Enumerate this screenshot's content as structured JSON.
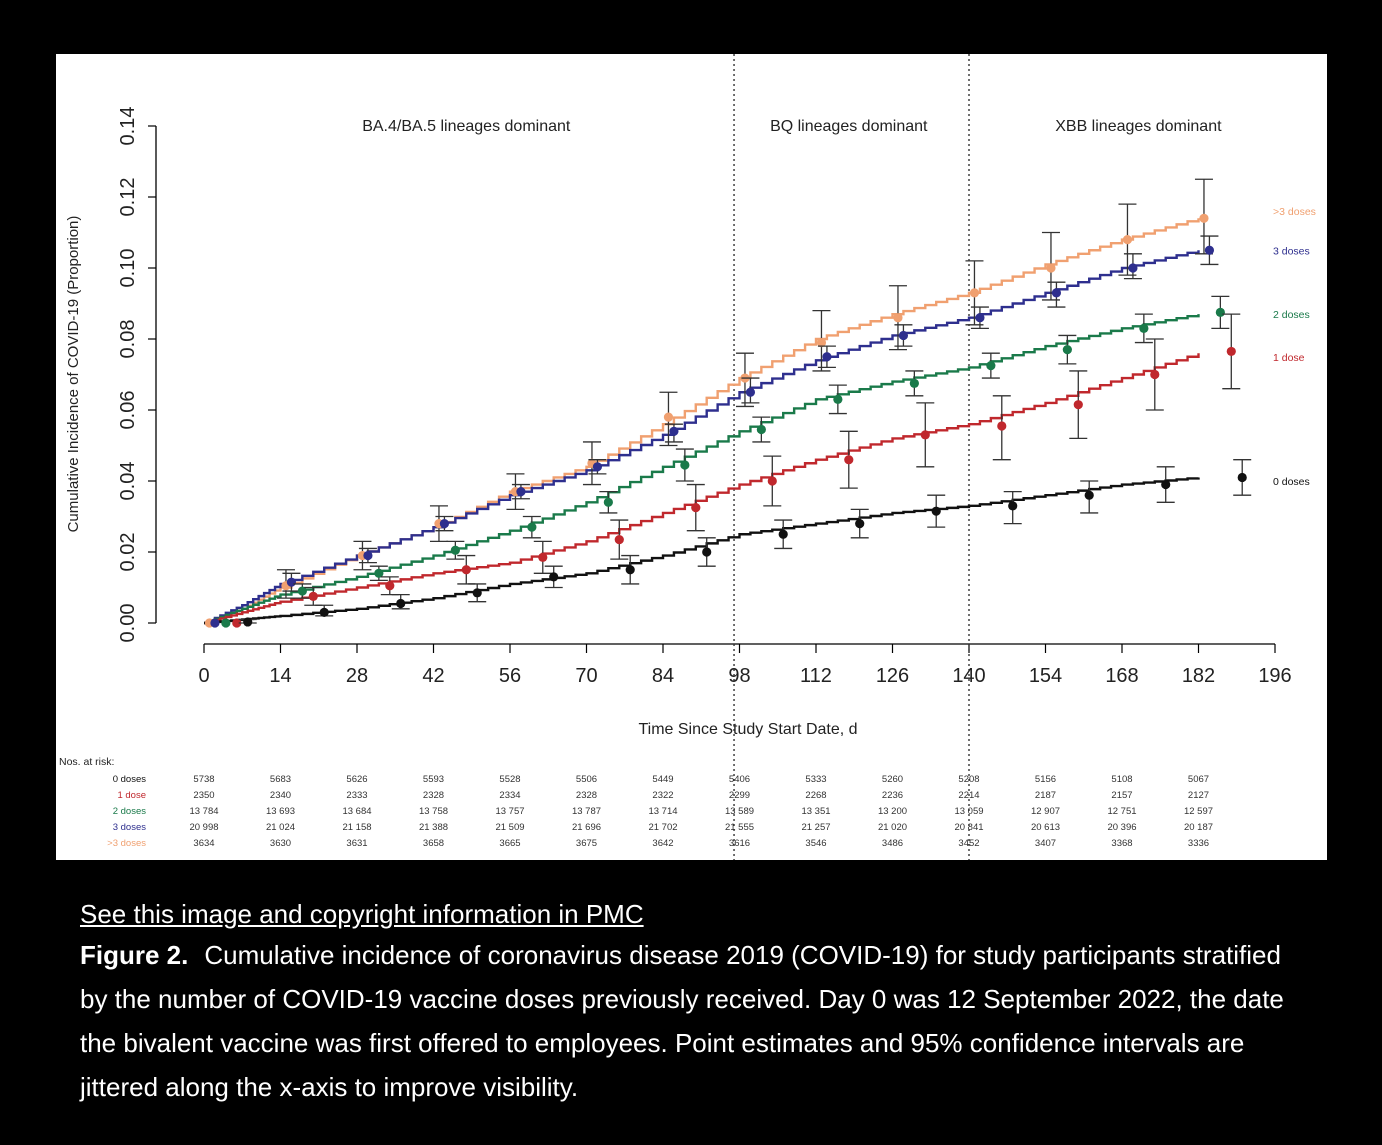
{
  "caption": {
    "link_text": "See this image and copyright information in PMC",
    "figure_label": "Figure 2.",
    "figure_text": "Cumulative incidence of coronavirus disease 2019 (COVID-19) for study participants stratified by the number of COVID-19 vaccine doses previously received. Day 0 was 12 September 2022, the date the bivalent vaccine was first offered to employees. Point estimates and 95% confidence intervals are jittered along the x-axis to improve visibility."
  },
  "chart_data": {
    "type": "line",
    "xlabel": "Time Since Study Start Date, d",
    "ylabel": "Cumulative Incidence of COVID-19 (Proportion)",
    "xlim": [
      0,
      196
    ],
    "ylim": [
      0,
      0.14
    ],
    "x_ticks": [
      0,
      14,
      28,
      42,
      56,
      70,
      84,
      98,
      112,
      126,
      140,
      154,
      168,
      182,
      196
    ],
    "y_ticks": [
      0.0,
      0.02,
      0.04,
      0.06,
      0.08,
      0.1,
      0.12,
      0.14
    ],
    "x_tick_labels": [
      "0",
      "14",
      "28",
      "42",
      "56",
      "70",
      "84",
      "98",
      "112",
      "126",
      "140",
      "154",
      "168",
      "182",
      "196"
    ],
    "y_tick_labels": [
      "0.00",
      "0.02",
      "0.04",
      "0.06",
      "0.08",
      "0.10",
      "0.12",
      "0.14"
    ],
    "period_lines": [
      97,
      140
    ],
    "periods": [
      {
        "label": "BA.4/BA.5 lineages dominant",
        "center_day": 48
      },
      {
        "label": "BQ lineages dominant",
        "center_day": 118
      },
      {
        "label": "XBB lineages dominant",
        "center_day": 171
      }
    ],
    "series": [
      {
        "name": ">3 doses",
        "color": "#f0a070",
        "curve": [
          [
            0,
            0
          ],
          [
            7,
            0.004
          ],
          [
            14,
            0.01
          ],
          [
            28,
            0.019
          ],
          [
            42,
            0.027
          ],
          [
            56,
            0.037
          ],
          [
            70,
            0.044
          ],
          [
            84,
            0.056
          ],
          [
            98,
            0.069
          ],
          [
            112,
            0.08
          ],
          [
            126,
            0.087
          ],
          [
            140,
            0.093
          ],
          [
            154,
            0.101
          ],
          [
            168,
            0.108
          ],
          [
            182,
            0.114
          ]
        ],
        "points": [
          {
            "x": 1,
            "y": 0,
            "lo": 0,
            "hi": 0
          },
          {
            "x": 15,
            "y": 0.0105,
            "lo": 0.007,
            "hi": 0.015
          },
          {
            "x": 29,
            "y": 0.019,
            "lo": 0.015,
            "hi": 0.023
          },
          {
            "x": 43,
            "y": 0.028,
            "lo": 0.023,
            "hi": 0.033
          },
          {
            "x": 57,
            "y": 0.037,
            "lo": 0.032,
            "hi": 0.042
          },
          {
            "x": 71,
            "y": 0.045,
            "lo": 0.039,
            "hi": 0.051
          },
          {
            "x": 85,
            "y": 0.058,
            "lo": 0.05,
            "hi": 0.065
          },
          {
            "x": 99,
            "y": 0.069,
            "lo": 0.061,
            "hi": 0.076
          },
          {
            "x": 113,
            "y": 0.079,
            "lo": 0.071,
            "hi": 0.088
          },
          {
            "x": 127,
            "y": 0.086,
            "lo": 0.077,
            "hi": 0.095
          },
          {
            "x": 141,
            "y": 0.093,
            "lo": 0.084,
            "hi": 0.102
          },
          {
            "x": 155,
            "y": 0.1,
            "lo": 0.091,
            "hi": 0.11
          },
          {
            "x": 169,
            "y": 0.108,
            "lo": 0.098,
            "hi": 0.118
          },
          {
            "x": 183,
            "y": 0.114,
            "lo": 0.104,
            "hi": 0.125
          }
        ]
      },
      {
        "name": "3 doses",
        "color": "#2e2f8e",
        "curve": [
          [
            0,
            0
          ],
          [
            7,
            0.005
          ],
          [
            14,
            0.011
          ],
          [
            28,
            0.019
          ],
          [
            42,
            0.027
          ],
          [
            56,
            0.036
          ],
          [
            70,
            0.043
          ],
          [
            84,
            0.053
          ],
          [
            98,
            0.065
          ],
          [
            112,
            0.074
          ],
          [
            126,
            0.081
          ],
          [
            140,
            0.086
          ],
          [
            154,
            0.093
          ],
          [
            168,
            0.1
          ],
          [
            182,
            0.105
          ]
        ],
        "points": [
          {
            "x": 2,
            "y": 0,
            "lo": 0,
            "hi": 0
          },
          {
            "x": 16,
            "y": 0.0115,
            "lo": 0.009,
            "hi": 0.014
          },
          {
            "x": 30,
            "y": 0.019,
            "lo": 0.017,
            "hi": 0.021
          },
          {
            "x": 44,
            "y": 0.028,
            "lo": 0.026,
            "hi": 0.03
          },
          {
            "x": 58,
            "y": 0.037,
            "lo": 0.035,
            "hi": 0.039
          },
          {
            "x": 72,
            "y": 0.044,
            "lo": 0.042,
            "hi": 0.046
          },
          {
            "x": 86,
            "y": 0.054,
            "lo": 0.051,
            "hi": 0.056
          },
          {
            "x": 100,
            "y": 0.065,
            "lo": 0.062,
            "hi": 0.069
          },
          {
            "x": 114,
            "y": 0.075,
            "lo": 0.072,
            "hi": 0.078
          },
          {
            "x": 128,
            "y": 0.081,
            "lo": 0.078,
            "hi": 0.084
          },
          {
            "x": 142,
            "y": 0.086,
            "lo": 0.083,
            "hi": 0.089
          },
          {
            "x": 156,
            "y": 0.093,
            "lo": 0.089,
            "hi": 0.096
          },
          {
            "x": 170,
            "y": 0.1,
            "lo": 0.097,
            "hi": 0.104
          },
          {
            "x": 184,
            "y": 0.105,
            "lo": 0.101,
            "hi": 0.109
          }
        ]
      },
      {
        "name": "2 doses",
        "color": "#1a7a4a",
        "curve": [
          [
            0,
            0
          ],
          [
            7,
            0.004
          ],
          [
            14,
            0.008
          ],
          [
            28,
            0.013
          ],
          [
            42,
            0.019
          ],
          [
            56,
            0.026
          ],
          [
            70,
            0.034
          ],
          [
            84,
            0.044
          ],
          [
            98,
            0.054
          ],
          [
            112,
            0.063
          ],
          [
            126,
            0.068
          ],
          [
            140,
            0.072
          ],
          [
            154,
            0.078
          ],
          [
            168,
            0.083
          ],
          [
            182,
            0.087
          ]
        ],
        "points": [
          {
            "x": 4,
            "y": 0,
            "lo": 0,
            "hi": 0
          },
          {
            "x": 18,
            "y": 0.009,
            "lo": 0.007,
            "hi": 0.011
          },
          {
            "x": 32,
            "y": 0.014,
            "lo": 0.012,
            "hi": 0.016
          },
          {
            "x": 46,
            "y": 0.0205,
            "lo": 0.018,
            "hi": 0.023
          },
          {
            "x": 60,
            "y": 0.027,
            "lo": 0.024,
            "hi": 0.03
          },
          {
            "x": 74,
            "y": 0.034,
            "lo": 0.031,
            "hi": 0.037
          },
          {
            "x": 88,
            "y": 0.0445,
            "lo": 0.04,
            "hi": 0.049
          },
          {
            "x": 102,
            "y": 0.0545,
            "lo": 0.051,
            "hi": 0.058
          },
          {
            "x": 116,
            "y": 0.063,
            "lo": 0.059,
            "hi": 0.067
          },
          {
            "x": 130,
            "y": 0.0675,
            "lo": 0.064,
            "hi": 0.071
          },
          {
            "x": 144,
            "y": 0.0725,
            "lo": 0.069,
            "hi": 0.076
          },
          {
            "x": 158,
            "y": 0.077,
            "lo": 0.073,
            "hi": 0.081
          },
          {
            "x": 172,
            "y": 0.083,
            "lo": 0.079,
            "hi": 0.087
          },
          {
            "x": 186,
            "y": 0.0875,
            "lo": 0.083,
            "hi": 0.092
          }
        ]
      },
      {
        "name": "1 dose",
        "color": "#c0282d",
        "curve": [
          [
            0,
            0
          ],
          [
            7,
            0.003
          ],
          [
            14,
            0.006
          ],
          [
            28,
            0.01
          ],
          [
            42,
            0.014
          ],
          [
            56,
            0.017
          ],
          [
            70,
            0.023
          ],
          [
            84,
            0.031
          ],
          [
            98,
            0.039
          ],
          [
            112,
            0.046
          ],
          [
            126,
            0.052
          ],
          [
            140,
            0.056
          ],
          [
            154,
            0.062
          ],
          [
            168,
            0.069
          ],
          [
            182,
            0.076
          ]
        ],
        "points": [
          {
            "x": 6,
            "y": 0,
            "lo": 0,
            "hi": 0
          },
          {
            "x": 20,
            "y": 0.0075,
            "lo": 0.005,
            "hi": 0.01
          },
          {
            "x": 34,
            "y": 0.0105,
            "lo": 0.008,
            "hi": 0.013
          },
          {
            "x": 48,
            "y": 0.015,
            "lo": 0.011,
            "hi": 0.019
          },
          {
            "x": 62,
            "y": 0.0185,
            "lo": 0.014,
            "hi": 0.023
          },
          {
            "x": 76,
            "y": 0.0235,
            "lo": 0.018,
            "hi": 0.029
          },
          {
            "x": 90,
            "y": 0.0325,
            "lo": 0.026,
            "hi": 0.039
          },
          {
            "x": 104,
            "y": 0.04,
            "lo": 0.033,
            "hi": 0.047
          },
          {
            "x": 118,
            "y": 0.046,
            "lo": 0.038,
            "hi": 0.054
          },
          {
            "x": 132,
            "y": 0.053,
            "lo": 0.044,
            "hi": 0.062
          },
          {
            "x": 146,
            "y": 0.0555,
            "lo": 0.046,
            "hi": 0.064
          },
          {
            "x": 160,
            "y": 0.0615,
            "lo": 0.052,
            "hi": 0.071
          },
          {
            "x": 174,
            "y": 0.07,
            "lo": 0.06,
            "hi": 0.08
          },
          {
            "x": 188,
            "y": 0.0765,
            "lo": 0.066,
            "hi": 0.087
          }
        ]
      },
      {
        "name": "0 doses",
        "color": "#111111",
        "curve": [
          [
            0,
            0
          ],
          [
            7,
            0.001
          ],
          [
            14,
            0.002
          ],
          [
            28,
            0.004
          ],
          [
            42,
            0.007
          ],
          [
            56,
            0.011
          ],
          [
            70,
            0.014
          ],
          [
            84,
            0.019
          ],
          [
            98,
            0.025
          ],
          [
            112,
            0.028
          ],
          [
            126,
            0.031
          ],
          [
            140,
            0.033
          ],
          [
            154,
            0.036
          ],
          [
            168,
            0.039
          ],
          [
            182,
            0.041
          ]
        ],
        "points": [
          {
            "x": 8,
            "y": 0.0003,
            "lo": 0,
            "hi": 0.001
          },
          {
            "x": 22,
            "y": 0.003,
            "lo": 0.002,
            "hi": 0.005
          },
          {
            "x": 36,
            "y": 0.0055,
            "lo": 0.004,
            "hi": 0.008
          },
          {
            "x": 50,
            "y": 0.0085,
            "lo": 0.006,
            "hi": 0.011
          },
          {
            "x": 64,
            "y": 0.013,
            "lo": 0.01,
            "hi": 0.016
          },
          {
            "x": 78,
            "y": 0.015,
            "lo": 0.011,
            "hi": 0.019
          },
          {
            "x": 92,
            "y": 0.02,
            "lo": 0.016,
            "hi": 0.024
          },
          {
            "x": 106,
            "y": 0.025,
            "lo": 0.021,
            "hi": 0.029
          },
          {
            "x": 120,
            "y": 0.028,
            "lo": 0.024,
            "hi": 0.032
          },
          {
            "x": 134,
            "y": 0.0315,
            "lo": 0.027,
            "hi": 0.036
          },
          {
            "x": 148,
            "y": 0.033,
            "lo": 0.028,
            "hi": 0.037
          },
          {
            "x": 162,
            "y": 0.036,
            "lo": 0.031,
            "hi": 0.04
          },
          {
            "x": 176,
            "y": 0.039,
            "lo": 0.034,
            "hi": 0.044
          },
          {
            "x": 190,
            "y": 0.041,
            "lo": 0.036,
            "hi": 0.046
          }
        ]
      }
    ],
    "legend_labels": [
      {
        "name": ">3 doses",
        "y": 0.116,
        "color": "#f0a070"
      },
      {
        "name": "3 doses",
        "y": 0.105,
        "color": "#2e2f8e"
      },
      {
        "name": "2 doses",
        "y": 0.087,
        "color": "#1a7a4a"
      },
      {
        "name": "1 dose",
        "y": 0.075,
        "color": "#c0282d"
      },
      {
        "name": "0 doses",
        "y": 0.04,
        "color": "#111111"
      }
    ],
    "risk_table": {
      "title": "Nos. at risk:",
      "days": [
        0,
        14,
        28,
        42,
        56,
        70,
        84,
        98,
        112,
        126,
        140,
        154,
        168,
        182
      ],
      "rows": [
        {
          "name": "0 doses",
          "color": "#111111",
          "values": [
            "5738",
            "5683",
            "5626",
            "5593",
            "5528",
            "5506",
            "5449",
            "5406",
            "5333",
            "5260",
            "5208",
            "5156",
            "5108",
            "5067"
          ]
        },
        {
          "name": "1 dose",
          "color": "#c0282d",
          "values": [
            "2350",
            "2340",
            "2333",
            "2328",
            "2334",
            "2328",
            "2322",
            "2299",
            "2268",
            "2236",
            "2214",
            "2187",
            "2157",
            "2127"
          ]
        },
        {
          "name": "2 doses",
          "color": "#1a7a4a",
          "values": [
            "13 784",
            "13 693",
            "13 684",
            "13 758",
            "13 757",
            "13 787",
            "13 714",
            "13 589",
            "13 351",
            "13 200",
            "13 059",
            "12 907",
            "12 751",
            "12 597"
          ]
        },
        {
          "name": "3 doses",
          "color": "#2e2f8e",
          "values": [
            "20 998",
            "21 024",
            "21 158",
            "21 388",
            "21 509",
            "21 696",
            "21 702",
            "21 555",
            "21 257",
            "21 020",
            "20 841",
            "20 613",
            "20 396",
            "20 187"
          ]
        },
        {
          "name": ">3 doses",
          "color": "#f0a070",
          "values": [
            "3634",
            "3630",
            "3631",
            "3658",
            "3665",
            "3675",
            "3642",
            "3616",
            "3546",
            "3486",
            "3452",
            "3407",
            "3368",
            "3336"
          ]
        }
      ]
    }
  }
}
